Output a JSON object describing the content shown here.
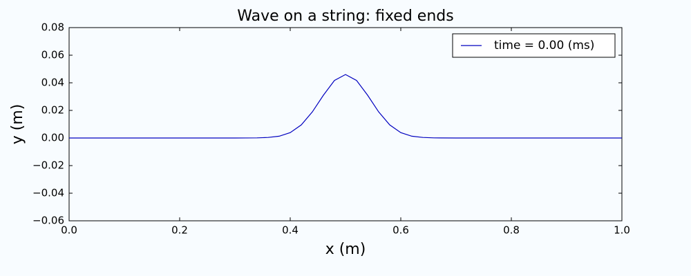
{
  "chart_data": {
    "type": "line",
    "title": "Wave on a string: fixed ends",
    "xlabel": "x (m)",
    "ylabel": "y (m)",
    "x": [
      0,
      0.1,
      0.2,
      0.3,
      0.34,
      0.36,
      0.38,
      0.4,
      0.42,
      0.44,
      0.46,
      0.48,
      0.5,
      0.52,
      0.54,
      0.56,
      0.58,
      0.6,
      0.62,
      0.64,
      0.66,
      0.7,
      0.8,
      0.9,
      1.0
    ],
    "series": [
      {
        "name": "time = 0.00 (ms)",
        "color": "#0000bf",
        "values": [
          0,
          0,
          0,
          0,
          0.0001,
          0.0004,
          0.0013,
          0.0039,
          0.0095,
          0.0189,
          0.031,
          0.0417,
          0.046,
          0.0417,
          0.031,
          0.0189,
          0.0095,
          0.0039,
          0.0013,
          0.0004,
          0.0001,
          0,
          0,
          0,
          0
        ]
      }
    ],
    "xlim": [
      0,
      1
    ],
    "xticks": [
      {
        "value": 0,
        "label": "0.0"
      },
      0.2,
      0.4,
      0.6,
      0.8,
      {
        "value": 1,
        "label": "1.0"
      }
    ],
    "ylim": [
      -0.06,
      0.08
    ],
    "yticks": [
      {
        "value": -0.06,
        "label": "−0.06"
      },
      {
        "value": -0.04,
        "label": "−0.04"
      },
      {
        "value": -0.02,
        "label": "−0.02"
      },
      {
        "value": 0,
        "label": "0.00"
      },
      0.02,
      0.04,
      0.06,
      0.08
    ],
    "legend": "upper right",
    "grid": false
  }
}
